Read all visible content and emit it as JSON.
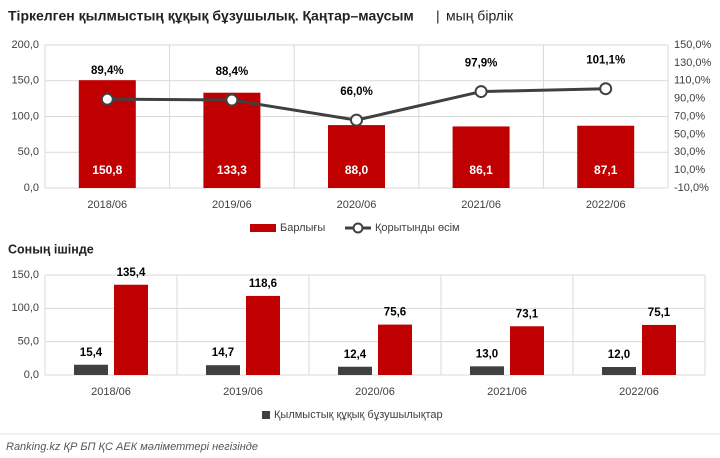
{
  "chart_data": [
    {
      "type": "bar",
      "title": "Тіркелген қылмыстың құқық бұзушылық. Қаңтар–маусым",
      "subtitle": "мың бірлік",
      "categories": [
        "2018/06",
        "2019/06",
        "2020/06",
        "2021/06",
        "2022/06"
      ],
      "series": [
        {
          "name": "Барлығы",
          "type": "bar",
          "color": "#c00000",
          "values": [
            150.8,
            133.3,
            88.0,
            86.1,
            87.1
          ],
          "value_labels": [
            "150,8",
            "133,3",
            "88,0",
            "86,1",
            "87,1"
          ]
        },
        {
          "name": "Қорытынды өсім",
          "type": "line",
          "axis": "y2",
          "color": "#404040",
          "values": [
            89.4,
            88.4,
            66.0,
            97.9,
            101.1
          ],
          "value_labels": [
            "89,4%",
            "88,4%",
            "66,0%",
            "97,9%",
            "101,1%"
          ]
        }
      ],
      "ylim": [
        0,
        200
      ],
      "yticks": [
        {
          "value": 0,
          "label": "0,0"
        },
        {
          "value": 50,
          "label": "50,0"
        },
        {
          "value": 100,
          "label": "100,0"
        },
        {
          "value": 150,
          "label": "150,0"
        },
        {
          "value": 200,
          "label": "200,0"
        }
      ],
      "y2lim": [
        -10,
        150
      ],
      "y2ticks": [
        {
          "value": -10,
          "label": "-10,0%"
        },
        {
          "value": 10,
          "label": "10,0%"
        },
        {
          "value": 30,
          "label": "30,0%"
        },
        {
          "value": 50,
          "label": "50,0%"
        },
        {
          "value": 70,
          "label": "70,0%"
        },
        {
          "value": 90,
          "label": "90,0%"
        },
        {
          "value": 110,
          "label": "110,0%"
        },
        {
          "value": 130,
          "label": "130,0%"
        },
        {
          "value": 150,
          "label": "150,0%"
        }
      ],
      "grid": true
    },
    {
      "type": "bar",
      "title": "Соның ішінде",
      "categories": [
        "2018/06",
        "2019/06",
        "2020/06",
        "2021/06",
        "2022/06"
      ],
      "series": [
        {
          "name": "Қылмыстық құқық бұзушылықтар",
          "type": "bar",
          "color": "#404040",
          "values": [
            15.4,
            14.7,
            12.4,
            13.0,
            12.0
          ],
          "value_labels": [
            "15,4",
            "14,7",
            "12,4",
            "13,0",
            "12,0"
          ]
        },
        {
          "type": "bar",
          "color": "#c00000",
          "values": [
            135.4,
            118.6,
            75.6,
            73.1,
            75.1
          ],
          "value_labels": [
            "135,4",
            "118,6",
            "75,6",
            "73,1",
            "75,1"
          ]
        }
      ],
      "ylim": [
        0,
        150
      ],
      "yticks": [
        {
          "value": 0,
          "label": "0,0"
        },
        {
          "value": 50,
          "label": "50,0"
        },
        {
          "value": 100,
          "label": "100,0"
        },
        {
          "value": 150,
          "label": "150,0"
        }
      ],
      "grid": true
    }
  ],
  "footer": "Ranking.kz ҚР БП ҚС АЕК мәліметтері негізінде"
}
